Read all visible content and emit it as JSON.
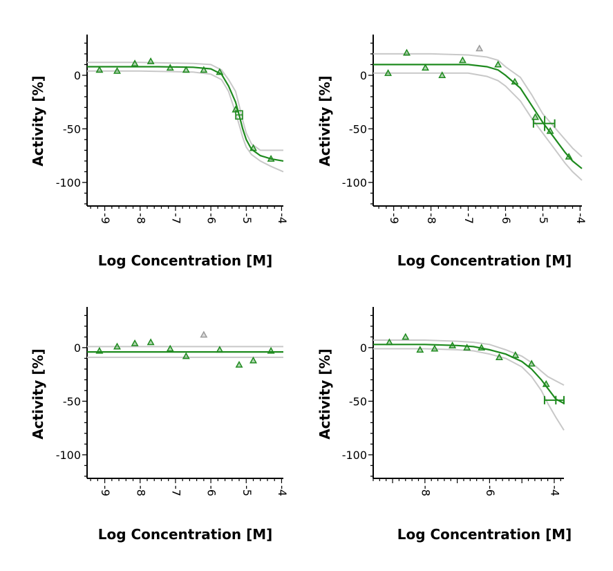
{
  "colors": {
    "fit": "#1e8a1e",
    "ci": "#c8c8c8",
    "excluded": "#9a9a9a",
    "axis": "#000000"
  },
  "chart_data": [
    {
      "type": "line",
      "xlabel": "Log Concentration [M]",
      "ylabel": "Activity [%]",
      "xlim": [
        -9.5,
        -3.95
      ],
      "ylim": [
        -122,
        38
      ],
      "xticks": [
        "-9",
        "-8",
        "-7",
        "-6",
        "-5",
        "-4"
      ],
      "xtick_values": [
        -9,
        -8,
        -7,
        -6,
        -5,
        -4
      ],
      "yticks": [
        "0",
        "-50",
        "-100"
      ],
      "ytick_values": [
        0,
        -50,
        -100
      ],
      "marker": "square-cross",
      "marker_point": [
        -5.2,
        -37
      ],
      "series": [
        {
          "role": "points",
          "points": [
            [
              -9.15,
              5
            ],
            [
              -8.65,
              4
            ],
            [
              -8.15,
              11
            ],
            [
              -7.7,
              13
            ],
            [
              -7.15,
              7
            ],
            [
              -6.7,
              5
            ],
            [
              -6.2,
              5
            ],
            [
              -5.75,
              3
            ],
            [
              -5.3,
              -32
            ],
            [
              -4.8,
              -68
            ],
            [
              -4.3,
              -78
            ]
          ]
        },
        {
          "role": "fit",
          "points": [
            [
              -9.5,
              8
            ],
            [
              -8.5,
              8
            ],
            [
              -7.5,
              8
            ],
            [
              -6.5,
              7.5
            ],
            [
              -6,
              6
            ],
            [
              -5.7,
              1
            ],
            [
              -5.5,
              -10
            ],
            [
              -5.3,
              -25
            ],
            [
              -5.2,
              -37
            ],
            [
              -5.1,
              -50
            ],
            [
              -5,
              -60
            ],
            [
              -4.85,
              -69
            ],
            [
              -4.6,
              -75
            ],
            [
              -4.3,
              -78
            ],
            [
              -3.95,
              -80
            ]
          ]
        },
        {
          "role": "ci",
          "points": [
            [
              -9.5,
              12
            ],
            [
              -8,
              12
            ],
            [
              -6.5,
              11
            ],
            [
              -6,
              10
            ],
            [
              -5.7,
              5
            ],
            [
              -5.5,
              -4
            ],
            [
              -5.3,
              -15
            ],
            [
              -5.2,
              -28
            ],
            [
              -5.1,
              -42
            ],
            [
              -5,
              -54
            ],
            [
              -4.85,
              -64
            ],
            [
              -4.6,
              -70
            ],
            [
              -4.3,
              -70
            ],
            [
              -3.95,
              -70
            ]
          ]
        },
        {
          "role": "ci",
          "points": [
            [
              -9.5,
              4
            ],
            [
              -8,
              4
            ],
            [
              -6.5,
              3
            ],
            [
              -6,
              1
            ],
            [
              -5.7,
              -4
            ],
            [
              -5.5,
              -15
            ],
            [
              -5.3,
              -35
            ],
            [
              -5.2,
              -46
            ],
            [
              -5.1,
              -58
            ],
            [
              -5,
              -67
            ],
            [
              -4.85,
              -74
            ],
            [
              -4.6,
              -80
            ],
            [
              -4.3,
              -85
            ],
            [
              -3.95,
              -90
            ]
          ]
        }
      ]
    },
    {
      "type": "line",
      "xlabel": "Log Concentration [M]",
      "ylabel": "Activity [%]",
      "xlim": [
        -9.55,
        -3.95
      ],
      "ylim": [
        -122,
        38
      ],
      "xticks": [
        "-9",
        "-8",
        "-7",
        "-6",
        "-5",
        "-4"
      ],
      "xtick_values": [
        -9,
        -8,
        -7,
        -6,
        -5,
        -4
      ],
      "yticks": [
        "0",
        "-50",
        "-100"
      ],
      "ytick_values": [
        0,
        -50,
        -100
      ],
      "marker": "error-cross",
      "marker_point": [
        -4.95,
        -45
      ],
      "marker_xerr": [
        -5.25,
        -4.68
      ],
      "marker_yerr": [
        -38,
        -52
      ],
      "excluded_points": [
        [
          -6.7,
          25
        ]
      ],
      "series": [
        {
          "role": "points",
          "points": [
            [
              -9.15,
              2
            ],
            [
              -8.65,
              21
            ],
            [
              -8.15,
              7
            ],
            [
              -7.7,
              0
            ],
            [
              -7.15,
              14
            ],
            [
              -6.2,
              10
            ],
            [
              -5.75,
              -6
            ],
            [
              -5.2,
              -39
            ],
            [
              -4.8,
              -52
            ],
            [
              -4.3,
              -76
            ]
          ]
        },
        {
          "role": "fit",
          "points": [
            [
              -9.55,
              10
            ],
            [
              -8,
              10
            ],
            [
              -7,
              10
            ],
            [
              -6.5,
              8
            ],
            [
              -6.2,
              5
            ],
            [
              -6,
              0
            ],
            [
              -5.6,
              -12
            ],
            [
              -5.3,
              -28
            ],
            [
              -5,
              -44
            ],
            [
              -4.7,
              -58
            ],
            [
              -4.4,
              -72
            ],
            [
              -4.2,
              -80
            ],
            [
              -3.95,
              -87
            ]
          ]
        },
        {
          "role": "ci",
          "points": [
            [
              -9.55,
              20
            ],
            [
              -8,
              20
            ],
            [
              -7,
              19
            ],
            [
              -6.5,
              17
            ],
            [
              -6.2,
              14
            ],
            [
              -6,
              8
            ],
            [
              -5.6,
              -2
            ],
            [
              -5.3,
              -18
            ],
            [
              -5,
              -36
            ],
            [
              -4.7,
              -48
            ],
            [
              -4.4,
              -60
            ],
            [
              -4.2,
              -68
            ],
            [
              -3.95,
              -76
            ]
          ]
        },
        {
          "role": "ci",
          "points": [
            [
              -9.55,
              2
            ],
            [
              -8,
              2
            ],
            [
              -7,
              2
            ],
            [
              -6.5,
              -1
            ],
            [
              -6.2,
              -5
            ],
            [
              -6,
              -10
            ],
            [
              -5.6,
              -24
            ],
            [
              -5.3,
              -40
            ],
            [
              -5,
              -54
            ],
            [
              -4.7,
              -68
            ],
            [
              -4.4,
              -82
            ],
            [
              -4.2,
              -90
            ],
            [
              -3.95,
              -98
            ]
          ]
        }
      ]
    },
    {
      "type": "line",
      "xlabel": "Log Concentration [M]",
      "ylabel": "Activity [%]",
      "xlim": [
        -9.5,
        -3.95
      ],
      "ylim": [
        -122,
        38
      ],
      "xticks": [
        "-9",
        "-8",
        "-7",
        "-6",
        "-5",
        "-4"
      ],
      "xtick_values": [
        -9,
        -8,
        -7,
        -6,
        -5,
        -4
      ],
      "yticks": [
        "0",
        "-50",
        "-100"
      ],
      "ytick_values": [
        0,
        -50,
        -100
      ],
      "excluded_points": [
        [
          -6.2,
          12
        ]
      ],
      "series": [
        {
          "role": "points",
          "points": [
            [
              -9.15,
              -3
            ],
            [
              -8.65,
              1
            ],
            [
              -8.15,
              4
            ],
            [
              -7.7,
              5
            ],
            [
              -7.15,
              -1
            ],
            [
              -6.7,
              -8
            ],
            [
              -5.75,
              -2
            ],
            [
              -5.2,
              -16
            ],
            [
              -4.8,
              -12
            ],
            [
              -4.3,
              -3
            ]
          ]
        },
        {
          "role": "fit",
          "points": [
            [
              -9.5,
              -4
            ],
            [
              -3.95,
              -4
            ]
          ]
        },
        {
          "role": "ci",
          "points": [
            [
              -9.5,
              1
            ],
            [
              -3.95,
              1
            ]
          ]
        },
        {
          "role": "ci",
          "points": [
            [
              -9.5,
              -9
            ],
            [
              -3.95,
              -9
            ]
          ]
        }
      ]
    },
    {
      "type": "line",
      "xlabel": "Log Concentration [M]",
      "ylabel": "Activity [%]",
      "xlim": [
        -9.6,
        -3.7
      ],
      "ylim": [
        -122,
        38
      ],
      "xticks": [
        "-8",
        "-6",
        "-4"
      ],
      "xtick_values": [
        -8,
        -6,
        -4
      ],
      "yticks": [
        "0",
        "-50",
        "-100"
      ],
      "ytick_values": [
        0,
        -50,
        -100
      ],
      "marker": "error-cross",
      "marker_point": [
        -3.95,
        -49
      ],
      "marker_xerr": [
        -4.3,
        -3.7
      ],
      "marker_yerr": [
        -45,
        -53
      ],
      "series": [
        {
          "role": "points",
          "points": [
            [
              -9.1,
              5
            ],
            [
              -8.6,
              10
            ],
            [
              -8.15,
              -2
            ],
            [
              -7.7,
              -1
            ],
            [
              -7.15,
              2
            ],
            [
              -6.7,
              0
            ],
            [
              -6.25,
              0
            ],
            [
              -5.7,
              -9
            ],
            [
              -5.2,
              -7
            ],
            [
              -4.7,
              -15
            ],
            [
              -4.25,
              -34
            ]
          ]
        },
        {
          "role": "fit",
          "points": [
            [
              -9.6,
              3
            ],
            [
              -8,
              3
            ],
            [
              -7,
              2
            ],
            [
              -6.5,
              1
            ],
            [
              -6,
              -2
            ],
            [
              -5.5,
              -6
            ],
            [
              -5,
              -13
            ],
            [
              -4.7,
              -20
            ],
            [
              -4.4,
              -30
            ],
            [
              -4.2,
              -38
            ],
            [
              -3.95,
              -48
            ],
            [
              -3.7,
              -52
            ]
          ]
        },
        {
          "role": "ci",
          "points": [
            [
              -9.6,
              7
            ],
            [
              -8,
              7
            ],
            [
              -7,
              6
            ],
            [
              -6.5,
              5
            ],
            [
              -6,
              3
            ],
            [
              -5.5,
              -2
            ],
            [
              -5,
              -8
            ],
            [
              -4.7,
              -14
            ],
            [
              -4.4,
              -22
            ],
            [
              -4.2,
              -27
            ],
            [
              -3.95,
              -31
            ],
            [
              -3.7,
              -35
            ]
          ]
        },
        {
          "role": "ci",
          "points": [
            [
              -9.6,
              -1
            ],
            [
              -8,
              -1
            ],
            [
              -7,
              -2
            ],
            [
              -6.5,
              -3
            ],
            [
              -6,
              -6
            ],
            [
              -5.5,
              -10
            ],
            [
              -5,
              -18
            ],
            [
              -4.7,
              -27
            ],
            [
              -4.4,
              -40
            ],
            [
              -4.2,
              -52
            ],
            [
              -3.95,
              -65
            ],
            [
              -3.7,
              -77
            ]
          ]
        }
      ]
    }
  ]
}
